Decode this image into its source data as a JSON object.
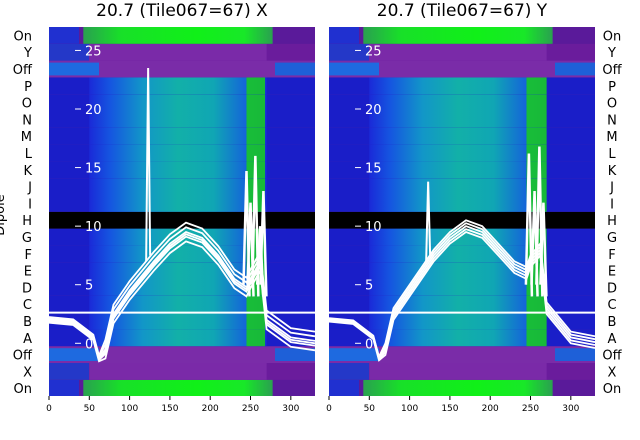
{
  "chart_data": [
    {
      "type": "heatmap",
      "title": "20.7 (Tile067=67) X",
      "ylabel": "Dipole",
      "xlim": [
        0,
        330
      ],
      "xticks": [
        0,
        50,
        100,
        150,
        200,
        250,
        300
      ],
      "ylim": [
        -4.5,
        27
      ],
      "yticks": [
        0,
        5,
        10,
        15,
        20,
        25
      ],
      "row_labels": [
        "On",
        "X",
        "Off",
        "A",
        "B",
        "C",
        "D",
        "E",
        "F",
        "G",
        "H",
        "I",
        "J",
        "K",
        "L",
        "M",
        "N",
        "O",
        "P",
        "Off",
        "Y",
        "On"
      ],
      "band_x_range": [
        50,
        270
      ],
      "bright_green_x_range": [
        245,
        268
      ],
      "spike_x": 123,
      "spike_peak": 23.5,
      "curves": {
        "x": [
          0,
          30,
          55,
          62,
          70,
          80,
          100,
          130,
          150,
          170,
          190,
          210,
          230,
          245,
          250,
          262,
          270,
          300,
          330
        ],
        "center": [
          2,
          1.8,
          0.5,
          -1.3,
          -0.5,
          2.5,
          4.5,
          7,
          8.5,
          9.5,
          9,
          7.5,
          5.5,
          4.8,
          5.5,
          7,
          2,
          0.5,
          0.2
        ],
        "offsets": [
          -0.8,
          -0.4,
          0,
          0.4,
          0.8,
          -0.2
        ]
      },
      "spikes_region": [
        {
          "x": 245,
          "y": 14.7
        },
        {
          "x": 250,
          "y": 12
        },
        {
          "x": 256,
          "y": 16
        },
        {
          "x": 262,
          "y": 10
        },
        {
          "x": 266,
          "y": 13
        }
      ]
    },
    {
      "type": "heatmap",
      "title": "20.7 (Tile067=67) Y",
      "xlim": [
        0,
        330
      ],
      "xticks": [
        0,
        50,
        100,
        150,
        200,
        250,
        300
      ],
      "ylim": [
        -4.5,
        27
      ],
      "yticks": [
        0,
        5,
        10,
        15,
        20,
        25
      ],
      "row_labels": [
        "On",
        "X",
        "Off",
        "A",
        "B",
        "C",
        "D",
        "E",
        "F",
        "G",
        "H",
        "I",
        "J",
        "K",
        "L",
        "M",
        "N",
        "O",
        "P",
        "Off",
        "Y",
        "On"
      ],
      "band_x_range": [
        50,
        270
      ],
      "bright_green_x_range": [
        245,
        270
      ],
      "spike_x": 123,
      "spike_peak": 13.8,
      "curves": {
        "x": [
          0,
          30,
          55,
          62,
          70,
          80,
          100,
          130,
          150,
          170,
          190,
          210,
          230,
          245,
          250,
          262,
          270,
          300,
          330
        ],
        "center": [
          2,
          1.8,
          0.5,
          -1.3,
          -0.5,
          2.5,
          4.5,
          7.5,
          9,
          10,
          9.5,
          8,
          6.5,
          6,
          7,
          8,
          3,
          0.5,
          0.1
        ],
        "offsets": [
          -0.5,
          -0.25,
          0,
          0.25,
          0.5
        ]
      },
      "spikes_region": [
        {
          "x": 248,
          "y": 16.2
        },
        {
          "x": 255,
          "y": 13
        },
        {
          "x": 261,
          "y": 16.8
        },
        {
          "x": 266,
          "y": 12
        }
      ]
    }
  ]
}
